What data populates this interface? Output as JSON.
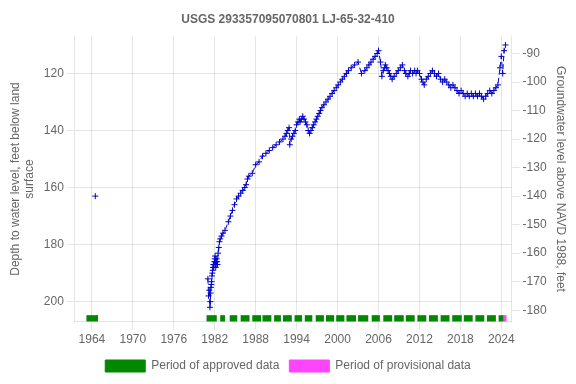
{
  "chart_data": {
    "type": "line",
    "title": "USGS 293357095070801 LJ-65-32-410",
    "ylabel": "Depth to water level, feet below land\nsurface",
    "y2label": "Groundwater level above NAVD 1988, feet",
    "xlim": [
      1961.5,
      2025.5
    ],
    "xticks": [
      1964,
      1970,
      1976,
      1982,
      1988,
      1994,
      2000,
      2006,
      2012,
      2018,
      2024
    ],
    "ylim": [
      207,
      107
    ],
    "yticks": [
      120,
      140,
      160,
      180,
      200
    ],
    "y2lim": [
      -184,
      -84
    ],
    "y2ticks": [
      -90,
      -100,
      -110,
      -120,
      -130,
      -140,
      -150,
      -160,
      -170,
      -180
    ],
    "grid": true,
    "legend": "bottom",
    "band_y": 206,
    "band_height": 2.5,
    "series": [
      {
        "type": "line",
        "color": "#0000cc",
        "line_style": "dashed",
        "marker": "plus",
        "x": [
          1964.5,
          null,
          1981.0,
          1981.1,
          1981.2,
          1981.3,
          1981.35,
          1981.4,
          1981.45,
          1981.5,
          1981.55,
          1981.6,
          1981.65,
          1981.7,
          1981.75,
          1981.8,
          1981.85,
          1981.9,
          1981.95,
          1982.0,
          1982.05,
          1982.1,
          1982.15,
          1982.2,
          1982.25,
          1982.3,
          1982.35,
          1982.4,
          1982.5,
          1982.6,
          1982.7,
          1982.8,
          1983.0,
          1983.2,
          1983.5,
          1984.0,
          1984.3,
          1984.6,
          1984.9,
          1985.2,
          1985.5,
          1985.8,
          1986.1,
          1986.4,
          1986.6,
          1986.8,
          1987.0,
          1987.5,
          1988.0,
          1988.5,
          1989.0,
          1989.5,
          1990.0,
          1990.5,
          1991.0,
          1991.5,
          1992.0,
          1992.3,
          1992.5,
          1992.7,
          1992.9,
          1993.0,
          1993.2,
          1993.4,
          1993.6,
          1993.8,
          1994.0,
          1994.2,
          1994.4,
          1994.5,
          1994.7,
          1994.9,
          1995.1,
          1995.3,
          1995.5,
          1995.7,
          1995.9,
          1996.1,
          1996.3,
          1996.5,
          1996.7,
          1996.9,
          1997.1,
          1997.3,
          1997.5,
          1997.7,
          1998.0,
          1998.3,
          1998.6,
          1998.9,
          1999.2,
          1999.5,
          1999.8,
          2000.1,
          2000.4,
          2000.7,
          2001.0,
          2001.3,
          2001.6,
          2002.0,
          2002.5,
          2003.0,
          2003.5,
          2004.0,
          2004.3,
          2004.6,
          2004.9,
          2005.2,
          2005.5,
          2005.8,
          2006.0,
          2006.3,
          2006.5,
          2006.7,
          2006.9,
          2007.0,
          2007.2,
          2007.4,
          2007.6,
          2007.8,
          2008.0,
          2008.3,
          2008.6,
          2008.9,
          2009.2,
          2009.5,
          2009.8,
          2010.0,
          2010.3,
          2010.5,
          2010.7,
          2011.0,
          2011.3,
          2011.5,
          2011.7,
          2012.0,
          2012.3,
          2012.5,
          2012.7,
          2013.0,
          2013.3,
          2013.6,
          2013.9,
          2014.2,
          2014.5,
          2014.8,
          2015.1,
          2015.4,
          2015.7,
          2016.0,
          2016.3,
          2016.6,
          2016.9,
          2017.2,
          2017.5,
          2017.8,
          2018.1,
          2018.4,
          2018.7,
          2019.0,
          2019.3,
          2019.6,
          2019.9,
          2020.2,
          2020.5,
          2020.8,
          2021.1,
          2021.4,
          2021.7,
          2022.0,
          2022.3,
          2022.6,
          2022.9,
          2023.2,
          2023.5,
          2023.8,
          2024.0,
          2024.2,
          2024.4,
          2024.6
        ],
        "values": [
          163,
          null,
          192,
          198,
          196,
          202,
          200,
          197,
          195,
          194,
          193,
          191,
          190,
          189,
          188,
          187,
          188,
          187,
          186,
          185,
          184,
          186,
          188,
          187,
          186,
          185,
          186,
          187,
          183,
          181,
          179,
          178,
          177,
          176,
          175,
          172,
          170,
          168,
          166,
          164,
          163,
          162,
          161,
          160,
          159,
          157,
          156,
          155,
          152,
          151,
          149,
          148,
          147,
          146,
          145,
          144,
          143,
          142,
          141,
          140,
          139,
          145,
          143,
          142,
          141,
          140,
          138,
          137,
          136,
          137,
          136,
          135,
          136,
          137,
          138,
          140,
          141,
          140,
          139,
          138,
          137,
          136,
          135,
          134,
          133,
          132,
          131,
          130,
          129,
          128,
          127,
          126,
          125,
          124,
          123,
          122,
          121,
          120,
          119,
          118,
          117,
          116,
          120,
          119,
          118,
          117,
          116,
          115,
          114,
          113,
          112,
          116,
          121,
          119,
          118,
          117,
          118,
          119,
          120,
          121,
          122,
          121,
          120,
          119,
          118,
          117,
          119,
          120,
          121,
          120,
          119,
          120,
          119,
          120,
          119,
          120,
          122,
          123,
          124,
          122,
          121,
          120,
          119,
          120,
          121,
          120,
          122,
          123,
          122,
          123,
          124,
          125,
          124,
          125,
          126,
          127,
          126,
          127,
          128,
          127,
          128,
          127,
          128,
          127,
          128,
          127,
          128,
          129,
          128,
          127,
          126,
          127,
          126,
          125,
          124,
          118,
          114,
          120,
          112,
          110
        ]
      },
      {
        "name": "Period of approved data",
        "type": "band",
        "color": "#008800",
        "ranges": [
          [
            1963.2,
            1964.9
          ],
          [
            1980.8,
            1982.3
          ],
          [
            1982.8,
            1983.5
          ],
          [
            1984.2,
            1985.3
          ],
          [
            1985.8,
            1987.1
          ],
          [
            1987.5,
            1988.8
          ],
          [
            1989.0,
            1990.3
          ],
          [
            1990.7,
            1991.7
          ],
          [
            1992.0,
            1993.3
          ],
          [
            1993.7,
            1994.8
          ],
          [
            1995.2,
            1996.3
          ],
          [
            1996.8,
            1998.0
          ],
          [
            1998.3,
            1999.5
          ],
          [
            1999.8,
            2001.0
          ],
          [
            2001.3,
            2002.7
          ],
          [
            2003.0,
            2004.5
          ],
          [
            2005.0,
            2006.2
          ],
          [
            2006.7,
            2008.0
          ],
          [
            2008.3,
            2009.7
          ],
          [
            2010.0,
            2011.3
          ],
          [
            2011.7,
            2013.0
          ],
          [
            2013.4,
            2014.7
          ],
          [
            2015.1,
            2016.4
          ],
          [
            2016.8,
            2018.2
          ],
          [
            2018.5,
            2019.8
          ],
          [
            2020.2,
            2021.5
          ],
          [
            2021.9,
            2023.2
          ],
          [
            2023.6,
            2024.35
          ]
        ]
      },
      {
        "name": "Period of provisional data",
        "type": "band",
        "color": "#ff44ff",
        "ranges": [
          [
            2024.35,
            2024.75
          ]
        ]
      }
    ]
  }
}
